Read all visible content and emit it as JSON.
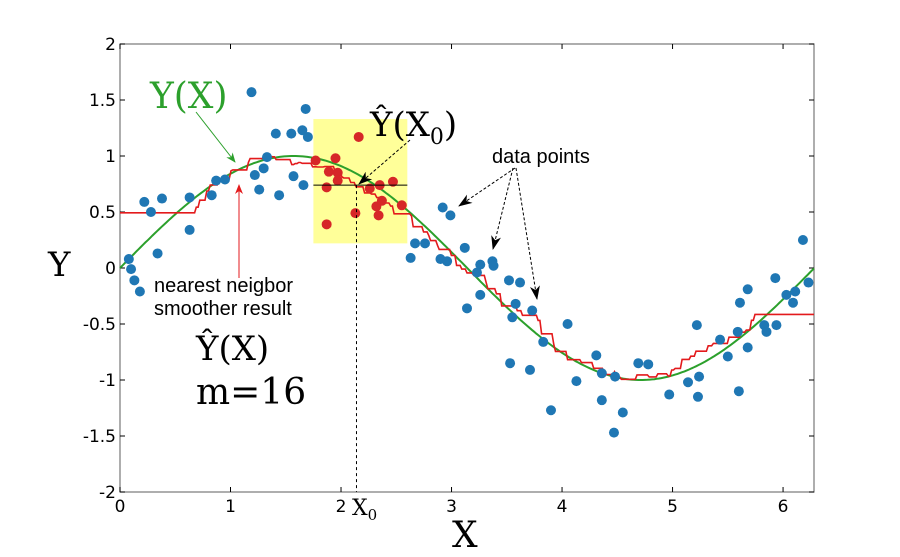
{
  "chart_data": {
    "type": "scatter",
    "xlabel": "X",
    "ylabel": "Y",
    "xlim": [
      0,
      6.28
    ],
    "ylim": [
      -2,
      2
    ],
    "x_ticks": [
      "0",
      "1",
      "2",
      "3",
      "4",
      "5",
      "6"
    ],
    "y_ticks": [
      "-2",
      "-1.5",
      "-1",
      "-0.5",
      "0",
      "0.5",
      "1",
      "1.5",
      "2"
    ],
    "grid": false,
    "colors": {
      "points": "#1f77b4",
      "neighbors": "#d62728",
      "true_curve": "#2ca02c",
      "smoother": "#e31a1c",
      "window": "#ffff99"
    },
    "true_function": {
      "label": "Y(X)",
      "formula": "sin(x)"
    },
    "smoother": {
      "label_lines": [
        "nearest neigbor",
        "smoother result"
      ],
      "estimate_label": "Ŷ(X)",
      "m_label": "m=16",
      "m": 16
    },
    "x0": {
      "value": 2.14,
      "label": "X",
      "label_sub": "0",
      "estimate": 0.74,
      "estimate_label": "Ŷ(X",
      "estimate_sub": "0",
      "estimate_close": ")"
    },
    "window": {
      "x": [
        1.75,
        2.6
      ],
      "y": [
        0.22,
        1.33
      ]
    },
    "data_points_label": "data points",
    "points": [
      [
        0.08,
        0.08
      ],
      [
        0.1,
        -0.01
      ],
      [
        0.13,
        -0.11
      ],
      [
        0.18,
        -0.21
      ],
      [
        0.22,
        0.59
      ],
      [
        0.28,
        0.5
      ],
      [
        0.34,
        0.13
      ],
      [
        0.38,
        0.62
      ],
      [
        0.63,
        0.63
      ],
      [
        0.63,
        0.34
      ],
      [
        0.83,
        0.65
      ],
      [
        0.87,
        0.78
      ],
      [
        0.95,
        0.79
      ],
      [
        1.19,
        1.57
      ],
      [
        1.22,
        0.83
      ],
      [
        1.26,
        0.7
      ],
      [
        1.3,
        0.89
      ],
      [
        1.33,
        0.99
      ],
      [
        1.41,
        1.2
      ],
      [
        1.44,
        0.65
      ],
      [
        1.55,
        1.2
      ],
      [
        1.57,
        0.82
      ],
      [
        1.66,
        0.74
      ],
      [
        1.65,
        1.23
      ],
      [
        1.68,
        1.42
      ],
      [
        1.7,
        1.17
      ],
      [
        2.92,
        0.54
      ],
      [
        2.99,
        0.47
      ],
      [
        2.67,
        0.22
      ],
      [
        2.76,
        0.22
      ],
      [
        2.63,
        0.09
      ],
      [
        2.9,
        0.08
      ],
      [
        2.96,
        0.06
      ],
      [
        3.12,
        0.18
      ],
      [
        3.26,
        0.03
      ],
      [
        3.37,
        0.06
      ],
      [
        3.38,
        0.02
      ],
      [
        3.23,
        -0.04
      ],
      [
        3.26,
        -0.24
      ],
      [
        3.14,
        -0.36
      ],
      [
        3.52,
        -0.11
      ],
      [
        3.62,
        -0.13
      ],
      [
        3.58,
        -0.32
      ],
      [
        3.55,
        -0.44
      ],
      [
        3.73,
        -0.38
      ],
      [
        3.83,
        -0.66
      ],
      [
        4.05,
        -0.5
      ],
      [
        3.53,
        -0.85
      ],
      [
        3.71,
        -0.91
      ],
      [
        4.13,
        -1.01
      ],
      [
        4.31,
        -0.78
      ],
      [
        4.36,
        -0.94
      ],
      [
        4.48,
        -0.97
      ],
      [
        4.36,
        -1.18
      ],
      [
        3.9,
        -1.27
      ],
      [
        4.55,
        -1.29
      ],
      [
        4.47,
        -1.47
      ],
      [
        4.69,
        -0.85
      ],
      [
        4.78,
        -0.86
      ],
      [
        4.97,
        -1.13
      ],
      [
        5.14,
        -1.02
      ],
      [
        5.24,
        -0.97
      ],
      [
        5.23,
        -1.15
      ],
      [
        5.22,
        -0.51
      ],
      [
        5.43,
        -0.64
      ],
      [
        5.5,
        -0.79
      ],
      [
        5.59,
        -0.57
      ],
      [
        5.6,
        -1.1
      ],
      [
        5.68,
        -0.71
      ],
      [
        5.61,
        -0.31
      ],
      [
        5.68,
        -0.19
      ],
      [
        5.83,
        -0.51
      ],
      [
        5.85,
        -0.57
      ],
      [
        5.94,
        -0.51
      ],
      [
        5.93,
        -0.09
      ],
      [
        6.03,
        -0.24
      ],
      [
        6.09,
        -0.31
      ],
      [
        6.11,
        -0.21
      ],
      [
        6.18,
        0.25
      ],
      [
        6.23,
        -0.13
      ]
    ],
    "neighbor_points": [
      [
        1.77,
        0.96
      ],
      [
        2.16,
        1.17
      ],
      [
        1.95,
        0.98
      ],
      [
        1.89,
        0.86
      ],
      [
        1.97,
        0.85
      ],
      [
        1.97,
        0.78
      ],
      [
        1.87,
        0.72
      ],
      [
        1.87,
        0.39
      ],
      [
        2.13,
        0.49
      ],
      [
        2.26,
        0.71
      ],
      [
        2.35,
        0.74
      ],
      [
        2.47,
        0.77
      ],
      [
        2.32,
        0.55
      ],
      [
        2.37,
        0.6
      ],
      [
        2.34,
        0.47
      ],
      [
        2.55,
        0.56
      ]
    ]
  }
}
